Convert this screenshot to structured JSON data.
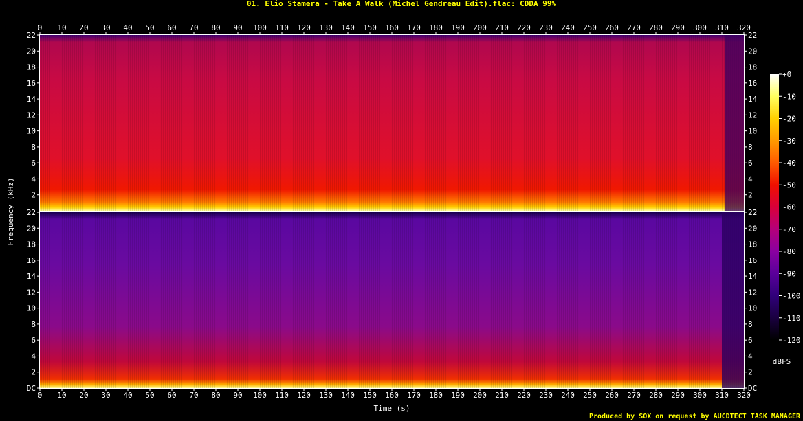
{
  "title": "01. Elio Stamera - Take A Walk (Michel Gendreau Edit).flac: CDDA 99%",
  "footer": "Produced by SOX on request by AUCDTECT TASK MANAGER",
  "chart_data": {
    "type": "heatmap",
    "xlabel": "Time (s)",
    "ylabel": "Frequency (kHz)",
    "xlim": [
      0,
      320
    ],
    "x_ticks": [
      "0",
      "10",
      "20",
      "30",
      "40",
      "50",
      "60",
      "70",
      "80",
      "90",
      "100",
      "110",
      "120",
      "130",
      "140",
      "150",
      "160",
      "170",
      "180",
      "190",
      "200",
      "210",
      "220",
      "230",
      "240",
      "250",
      "260",
      "270",
      "280",
      "290",
      "300",
      "310",
      "320"
    ],
    "ylim_khz": [
      0,
      22
    ],
    "y_ticks_top_panel": [
      "2",
      "4",
      "6",
      "8",
      "10",
      "12",
      "14",
      "16",
      "18",
      "20",
      "22"
    ],
    "y_ticks_bottom_panel": [
      "DC",
      "2",
      "4",
      "6",
      "8",
      "10",
      "12",
      "14",
      "16",
      "18",
      "20",
      "22"
    ],
    "y_ticks_top_right": [
      "2",
      "4",
      "6",
      "8",
      "10",
      "12",
      "14",
      "16",
      "18",
      "20",
      "22"
    ],
    "y_ticks_bottom_right": [
      "DC",
      "2",
      "4",
      "6",
      "8",
      "10",
      "12",
      "14",
      "16",
      "18",
      "20",
      "22"
    ],
    "channels": 2,
    "colorbar": {
      "label": "dBFS",
      "ticks": [
        "+0",
        "-10",
        "-20",
        "-30",
        "-40",
        "-50",
        "-60",
        "-70",
        "-80",
        "-90",
        "-100",
        "-110",
        "-120"
      ],
      "range_db": [
        -120,
        0
      ],
      "colors": [
        "#000000",
        "#1a0040",
        "#30007a",
        "#5a009a",
        "#8a00a0",
        "#b4007a",
        "#d8003a",
        "#f01000",
        "#ff5a00",
        "#ff9a00",
        "#ffd000",
        "#ffff60",
        "#ffffff"
      ]
    }
  }
}
